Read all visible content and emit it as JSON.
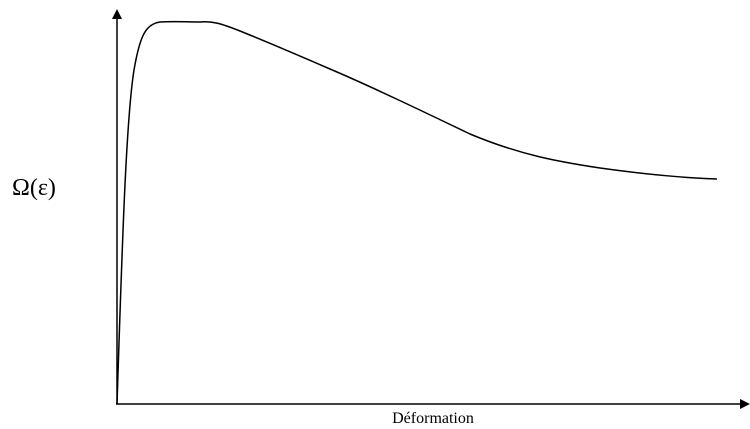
{
  "y_axis_label": "Ω(ε)",
  "x_axis_label": "Déformation"
}
